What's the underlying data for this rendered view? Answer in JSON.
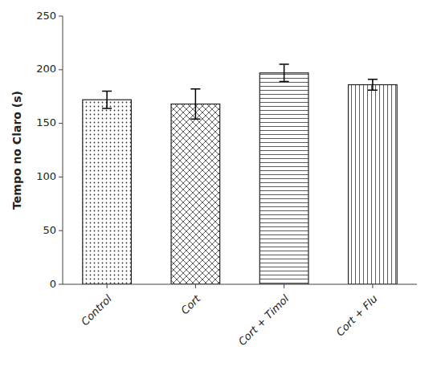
{
  "chart_data": {
    "type": "bar",
    "categories": [
      "Control",
      "Cort",
      "Cort + Timol",
      "Cort + Flu"
    ],
    "values": [
      172,
      168,
      197,
      186
    ],
    "errors": [
      8,
      14,
      8,
      5
    ],
    "ylabel": "Tempo no Claro (s)",
    "ylim": [
      0,
      250
    ],
    "yticks": [
      0,
      50,
      100,
      150,
      200,
      250
    ],
    "grid": false,
    "color": "white"
  }
}
